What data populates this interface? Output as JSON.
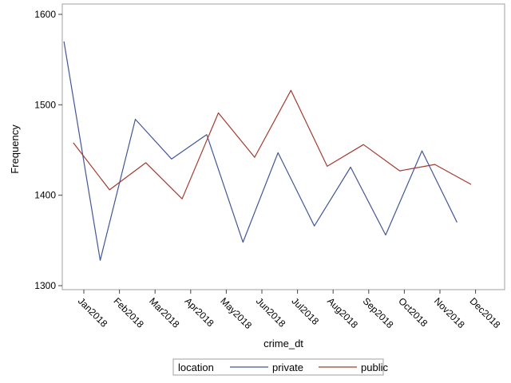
{
  "chart_data": {
    "type": "line",
    "xlabel": "crime_dt",
    "ylabel": "Frequency",
    "ylim": [
      1300,
      1600
    ],
    "yticks": [
      1300,
      1400,
      1500,
      1600
    ],
    "categories": [
      "Jan2018",
      "Feb2018",
      "Mar2018",
      "Apr2018",
      "May2018",
      "Jun2018",
      "Jul2018",
      "Aug2018",
      "Sep2018",
      "Oct2018",
      "Nov2018",
      "Dec2018"
    ],
    "grid": false,
    "legend": {
      "title": "location",
      "placement": "bottom"
    },
    "series": [
      {
        "name": "private",
        "color": "#445694",
        "x": [
          "2017-12-29",
          "2018-01-29",
          "2018-02-28",
          "2018-03-31",
          "2018-04-30",
          "2018-05-31",
          "2018-06-30",
          "2018-07-31",
          "2018-08-31",
          "2018-09-30",
          "2018-10-31",
          "2018-11-30"
        ],
        "values": [
          1570,
          1328,
          1484,
          1440,
          1467,
          1348,
          1447,
          1366,
          1431,
          1356,
          1449,
          1370
        ]
      },
      {
        "name": "public",
        "color": "#A23A2E",
        "x": [
          "2018-01-06",
          "2018-02-06",
          "2018-03-09",
          "2018-04-09",
          "2018-05-10",
          "2018-06-10",
          "2018-07-11",
          "2018-08-11",
          "2018-09-11",
          "2018-10-12",
          "2018-11-11",
          "2018-12-12"
        ],
        "values": [
          1458,
          1406,
          1436,
          1396,
          1491,
          1442,
          1516,
          1432,
          1456,
          1427,
          1434,
          1412
        ]
      }
    ]
  }
}
